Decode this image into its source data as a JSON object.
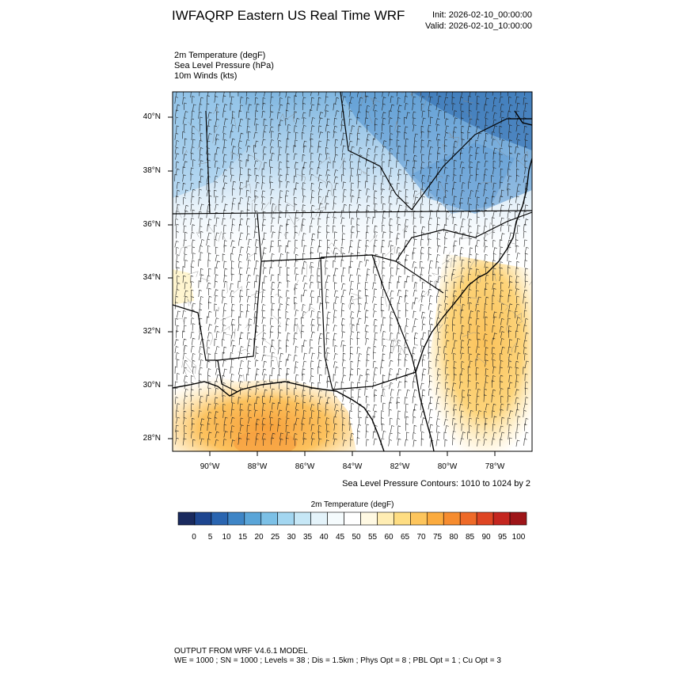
{
  "header": {
    "title": "IWFAQRP Eastern US Real Time WRF",
    "init": "Init: 2026-02-10_00:00:00",
    "valid": "Valid: 2026-02-10_10:00:00"
  },
  "fields": [
    "2m Temperature   (degF)",
    "Sea Level Pressure   (hPa)",
    "10m Winds   (kts)"
  ],
  "map": {
    "lat_labels": [
      "40°N",
      "38°N",
      "36°N",
      "34°N",
      "32°N",
      "30°N",
      "28°N"
    ],
    "lon_labels": [
      "90°W",
      "88°W",
      "86°W",
      "84°W",
      "82°W",
      "80°W",
      "78°W"
    ],
    "slp_note": "Sea Level Pressure Contours: 1010 to 1024 by 2"
  },
  "colorbar": {
    "title": "2m Temperature  (degF)",
    "labels": [
      "0",
      "5",
      "10",
      "15",
      "20",
      "25",
      "30",
      "35",
      "40",
      "45",
      "50",
      "55",
      "60",
      "65",
      "70",
      "75",
      "80",
      "85",
      "90",
      "95",
      "100"
    ],
    "colors": [
      "#1a2a5e",
      "#1e4690",
      "#2a65b0",
      "#3e85c6",
      "#5aa5d8",
      "#7cc0e6",
      "#a3d6f0",
      "#c6e7f6",
      "#e4f3fa",
      "#f5fbfd",
      "#ffffff",
      "#fff9e3",
      "#ffedb3",
      "#fedd82",
      "#fdc55c",
      "#fbab3e",
      "#f68c2f",
      "#ee6a28",
      "#de4523",
      "#c4261f",
      "#9e1518"
    ]
  },
  "footer": {
    "line1": "OUTPUT FROM WRF V4.6.1 MODEL",
    "line2": "WE = 1000 ; SN = 1000 ; Levels = 38 ; Dis = 1.5km ; Phys Opt = 8 ; PBL Opt = 1 ; Cu Opt = 3"
  }
}
